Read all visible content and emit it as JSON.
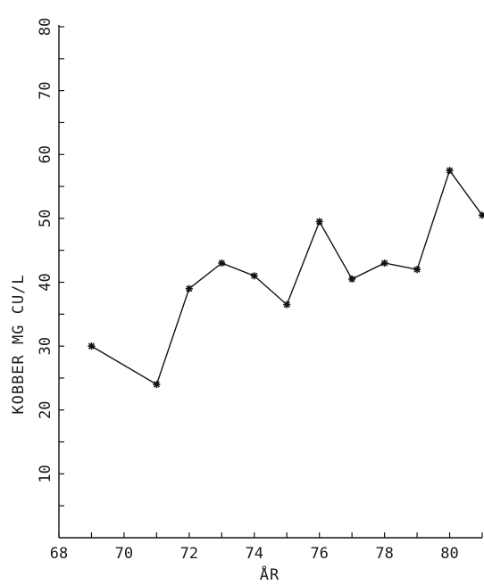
{
  "chart_data": {
    "type": "line",
    "xlabel": "ÅR",
    "ylabel": "KOBBER  MG CU/L",
    "xlim": [
      68,
      81
    ],
    "ylim": [
      0,
      80
    ],
    "x_ticks": [
      68,
      70,
      72,
      74,
      76,
      78,
      80
    ],
    "y_ticks": [
      10,
      20,
      30,
      40,
      50,
      60,
      70,
      80
    ],
    "grid": false,
    "marker": "asterisk",
    "series": [
      {
        "x": [
          69,
          71,
          72,
          73,
          74,
          75,
          76,
          77,
          78,
          79,
          80,
          81
        ],
        "values": [
          30,
          24,
          39,
          43,
          41,
          36.5,
          49.5,
          40.5,
          43,
          42,
          57.5,
          50.5
        ]
      }
    ]
  }
}
